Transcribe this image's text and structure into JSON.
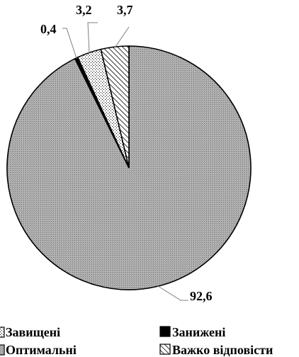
{
  "chart_data": {
    "type": "pie",
    "categories": [
      "Оптимальні",
      "Занижені",
      "Завищені",
      "Важко відповісти"
    ],
    "values": [
      92.6,
      0.4,
      3.2,
      3.7
    ],
    "data_labels": [
      "92,6",
      "0,4",
      "3,2",
      "3,7"
    ],
    "title": "",
    "legend_placement": "bottom",
    "legend": [
      {
        "label": "Завищені",
        "pattern": "dots"
      },
      {
        "label": "Занижені",
        "pattern": "solid"
      },
      {
        "label": "Оптимальні",
        "pattern": "fine-gray"
      },
      {
        "label": "Важко відповісти",
        "pattern": "diagonal-hatch"
      }
    ],
    "colors": {
      "slice_gray": "#a6a6a6",
      "slice_black": "#000000",
      "leader_line": "#808080"
    }
  }
}
